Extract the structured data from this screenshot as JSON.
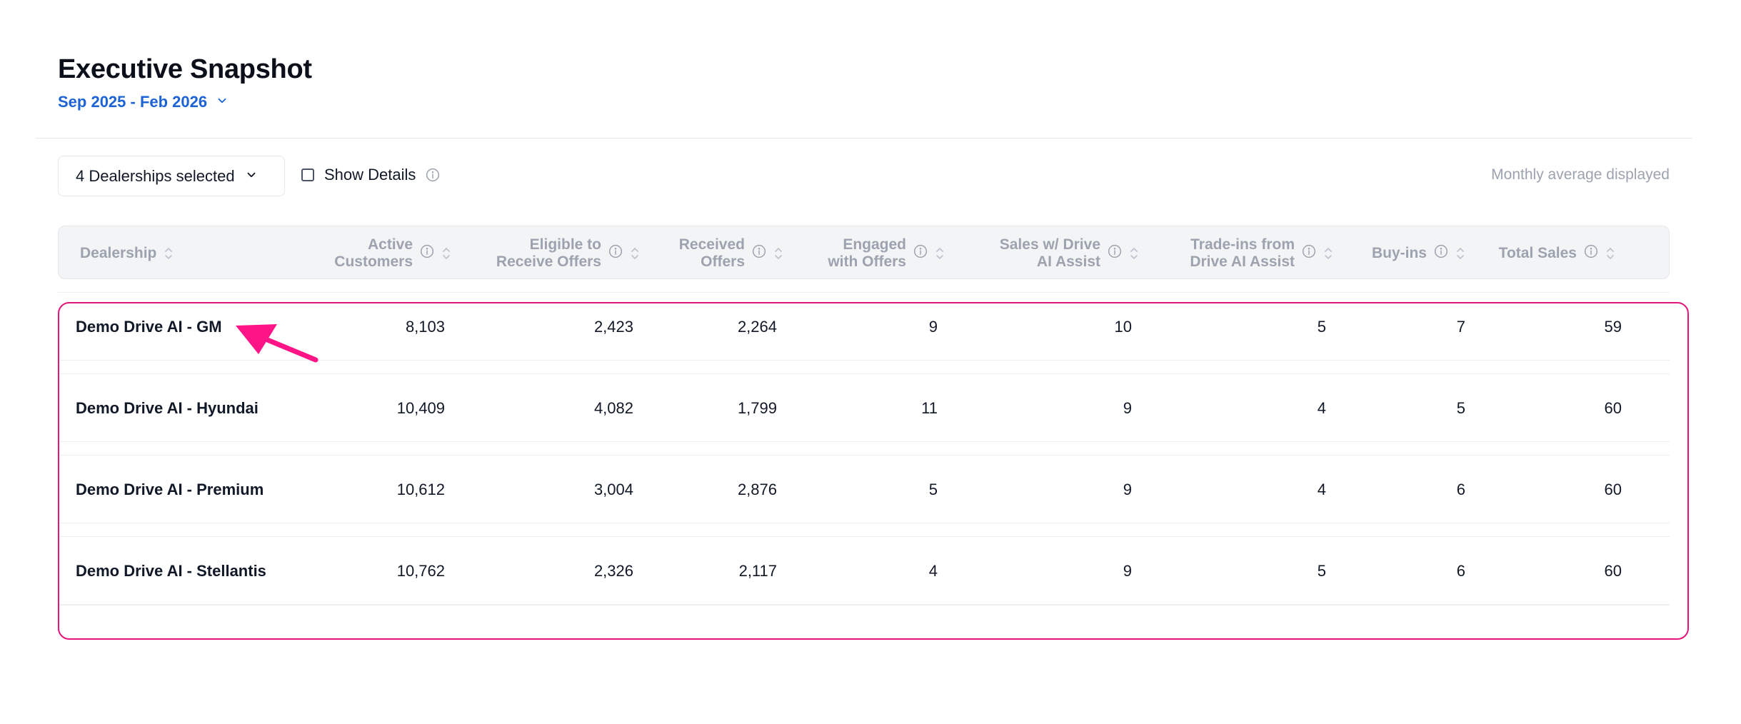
{
  "header": {
    "title": "Executive Snapshot",
    "date_range": "Sep 2025 - Feb 2026"
  },
  "filters": {
    "dealerships_label": "4 Dealerships selected",
    "show_details_label": "Show Details",
    "show_details_checked": false,
    "monthly_note": "Monthly average displayed"
  },
  "table": {
    "columns": [
      {
        "line1": "Dealership",
        "line2": ""
      },
      {
        "line1": "Active",
        "line2": "Customers"
      },
      {
        "line1": "Eligible to",
        "line2": "Receive Offers"
      },
      {
        "line1": "Received",
        "line2": "Offers"
      },
      {
        "line1": "Engaged",
        "line2": "with Offers"
      },
      {
        "line1": "Sales w/ Drive",
        "line2": "AI Assist"
      },
      {
        "line1": "Trade-ins from",
        "line2": "Drive AI Assist"
      },
      {
        "line1": "Buy-ins",
        "line2": ""
      },
      {
        "line1": "Total Sales",
        "line2": ""
      }
    ],
    "rows": [
      {
        "dealership": "Demo Drive AI - GM",
        "active": "8,103",
        "eligible": "2,423",
        "received": "2,264",
        "engaged": "9",
        "sales": "10",
        "tradeins": "5",
        "buyins": "7",
        "total": "59"
      },
      {
        "dealership": "Demo Drive AI - Hyundai",
        "active": "10,409",
        "eligible": "4,082",
        "received": "1,799",
        "engaged": "11",
        "sales": "9",
        "tradeins": "4",
        "buyins": "5",
        "total": "60"
      },
      {
        "dealership": "Demo Drive AI - Premium",
        "active": "10,612",
        "eligible": "3,004",
        "received": "2,876",
        "engaged": "5",
        "sales": "9",
        "tradeins": "4",
        "buyins": "6",
        "total": "60"
      },
      {
        "dealership": "Demo Drive AI - Stellantis",
        "active": "10,762",
        "eligible": "2,326",
        "received": "2,117",
        "engaged": "4",
        "sales": "9",
        "tradeins": "5",
        "buyins": "6",
        "total": "60"
      }
    ]
  },
  "colors": {
    "accent_blue": "#1d63d6",
    "highlight_pink": "#e6157a",
    "header_text_gray": "#9ca3af"
  }
}
